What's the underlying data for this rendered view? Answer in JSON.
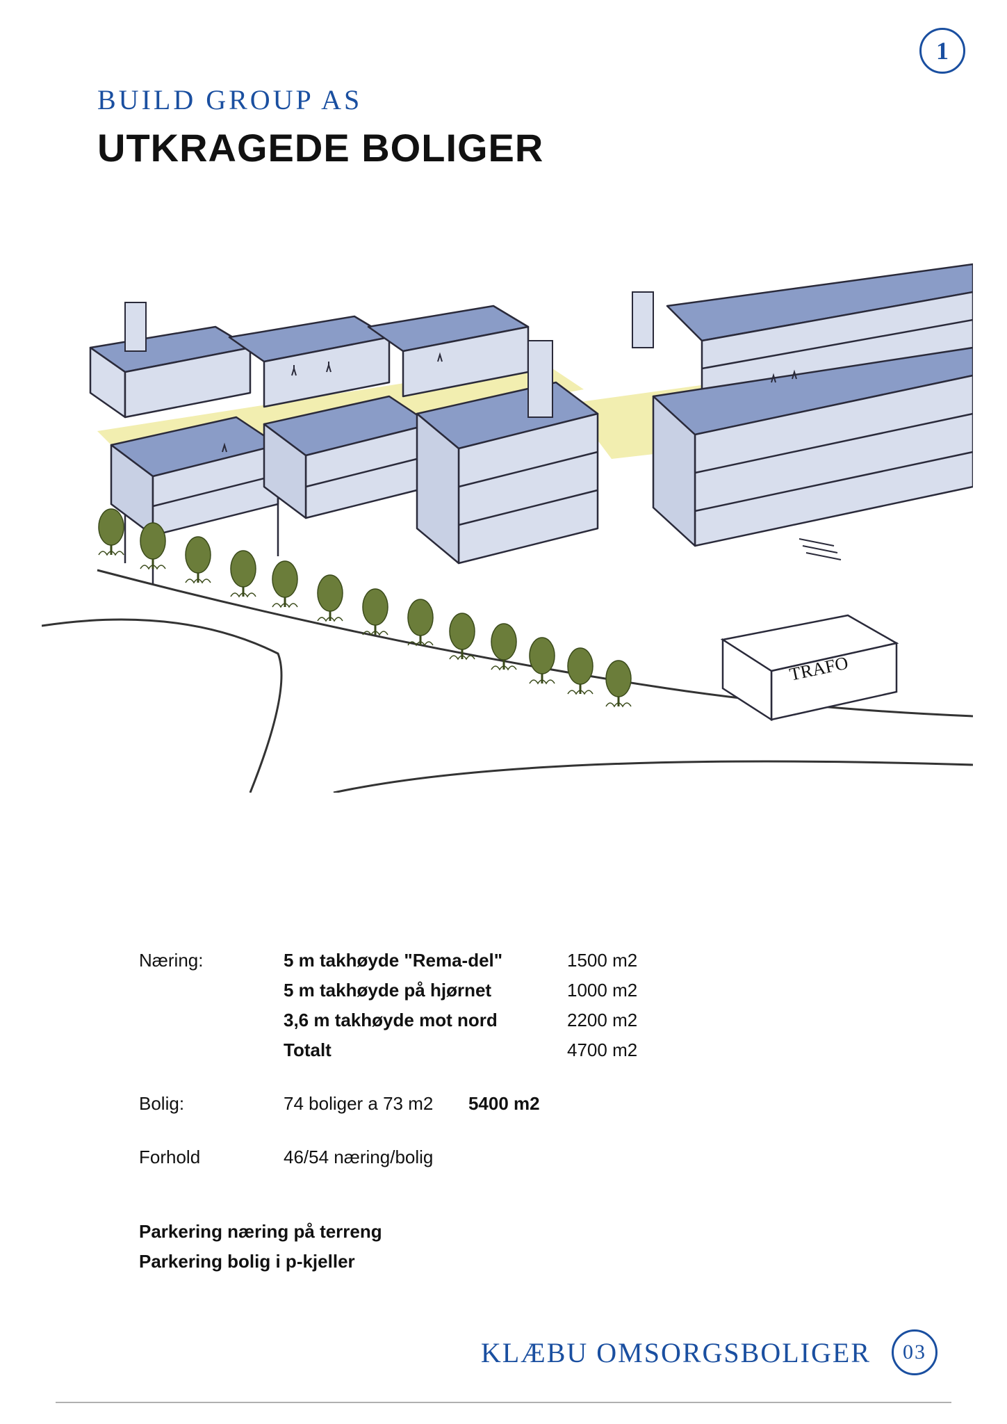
{
  "page_number_top": "1",
  "handwritten_company": "BUILD  GROUP  AS",
  "title": "UTKRAGEDE BOLIGER",
  "sketch": {
    "roof_color": "#8a9cc7",
    "wall_color": "#d8deed",
    "outline_color": "#2a2a3a",
    "ground_color": "#f2eeb0",
    "tree_color": "#6b7d3a",
    "tree_outline": "#3a4a1a",
    "road_line": "#333333",
    "trafo_label": "TRAFO"
  },
  "table": {
    "naering_label": "Næring:",
    "naering_rows": [
      {
        "desc": "5 m takhøyde \"Rema-del\"",
        "val": "1500 m2"
      },
      {
        "desc": "5 m takhøyde på hjørnet",
        "val": "1000 m2"
      },
      {
        "desc": "3,6 m takhøyde mot nord",
        "val": "2200 m2"
      },
      {
        "desc": "Totalt",
        "val": "4700 m2"
      }
    ],
    "bolig_label": "Bolig:",
    "bolig_desc": "74 boliger a 73 m2",
    "bolig_val": "5400 m2",
    "forhold_label": "Forhold",
    "forhold_desc": "46/54 næring/bolig",
    "parkering_1": "Parkering næring på terreng",
    "parkering_2": "Parkering bolig i p-kjeller"
  },
  "footer": {
    "text": "KLÆBU   OMSORGSBOLIGER",
    "badge": "03"
  }
}
